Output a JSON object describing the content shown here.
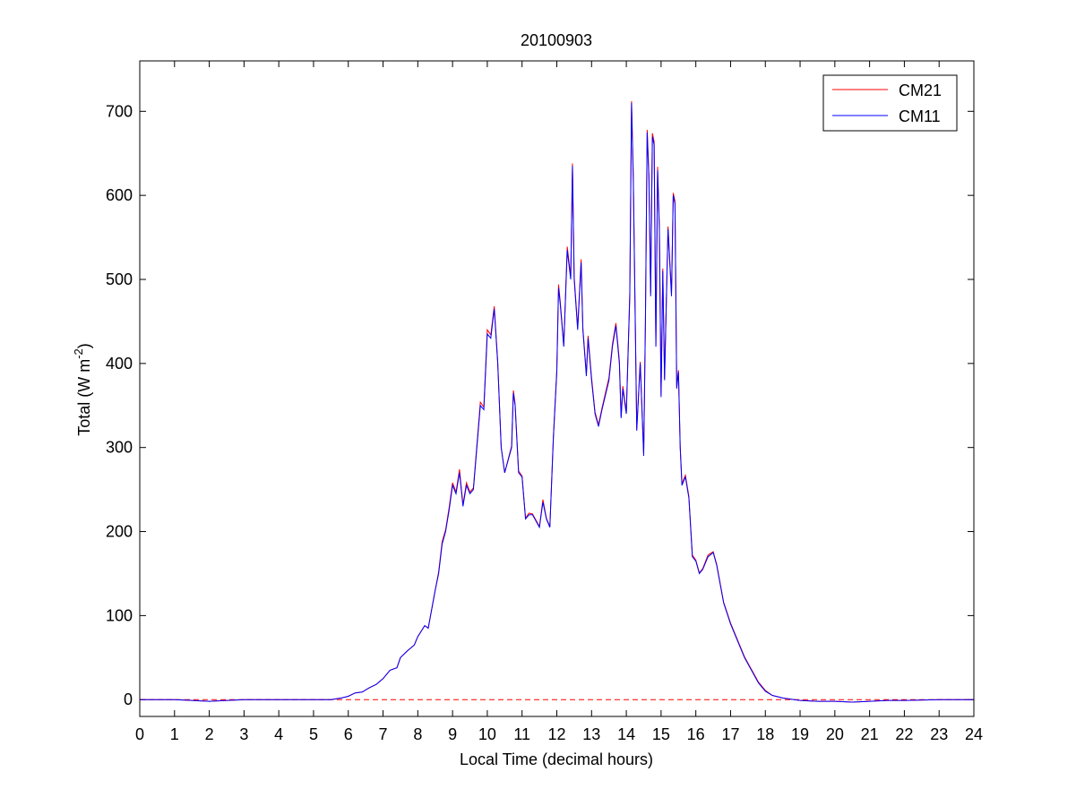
{
  "chart_data": {
    "type": "line",
    "title": "20100903",
    "xlabel": "Local Time (decimal hours)",
    "ylabel": {
      "text": "Total (W m",
      "superscript": "-2",
      "suffix": ")"
    },
    "xlim": [
      0,
      24
    ],
    "xticks": [
      0,
      1,
      2,
      3,
      4,
      5,
      6,
      7,
      8,
      9,
      10,
      11,
      12,
      13,
      14,
      15,
      16,
      17,
      18,
      19,
      20,
      21,
      22,
      23,
      24
    ],
    "ylim": [
      -20,
      760
    ],
    "yticks": [
      0,
      100,
      200,
      300,
      400,
      500,
      600,
      700
    ],
    "grid": false,
    "legend": "upper right",
    "zero_line": {
      "value": 0,
      "color": "#ff0000",
      "style": "dashed"
    },
    "x": [
      0,
      1,
      1.5,
      2,
      2.5,
      3,
      4,
      5,
      5.5,
      5.8,
      6,
      6.2,
      6.4,
      6.6,
      6.8,
      7,
      7.2,
      7.4,
      7.5,
      7.7,
      7.9,
      8,
      8.2,
      8.3,
      8.5,
      8.6,
      8.7,
      8.8,
      8.9,
      9,
      9.1,
      9.2,
      9.3,
      9.4,
      9.5,
      9.6,
      9.7,
      9.8,
      9.9,
      10,
      10.1,
      10.2,
      10.3,
      10.4,
      10.5,
      10.6,
      10.7,
      10.75,
      10.8,
      10.9,
      11,
      11.1,
      11.2,
      11.3,
      11.5,
      11.6,
      11.7,
      11.8,
      11.9,
      12,
      12.05,
      12.1,
      12.2,
      12.3,
      12.4,
      12.45,
      12.5,
      12.6,
      12.7,
      12.75,
      12.85,
      12.9,
      13,
      13.1,
      13.2,
      13.3,
      13.5,
      13.6,
      13.7,
      13.8,
      13.85,
      13.9,
      14,
      14.1,
      14.15,
      14.2,
      14.3,
      14.4,
      14.5,
      14.55,
      14.6,
      14.65,
      14.7,
      14.75,
      14.8,
      14.85,
      14.9,
      14.95,
      15,
      15.05,
      15.1,
      15.2,
      15.3,
      15.35,
      15.4,
      15.45,
      15.5,
      15.55,
      15.6,
      15.7,
      15.8,
      15.9,
      16,
      16.1,
      16.2,
      16.35,
      16.5,
      16.6,
      16.8,
      17,
      17.2,
      17.4,
      17.6,
      17.8,
      18,
      18.2,
      18.5,
      19,
      19.5,
      20,
      20.5,
      21,
      21.5,
      22,
      23,
      24
    ],
    "series": [
      {
        "name": "CM21",
        "color": "#ff0000",
        "values": [
          0,
          0,
          -1,
          -2,
          -1,
          0,
          0,
          0,
          0,
          2,
          4,
          8,
          9,
          14,
          18,
          25,
          35,
          38,
          50,
          58,
          65,
          75,
          88,
          85,
          130,
          152,
          188,
          202,
          228,
          258,
          247,
          274,
          232,
          258,
          247,
          252,
          303,
          354,
          348,
          440,
          434,
          468,
          402,
          300,
          270,
          286,
          302,
          368,
          352,
          272,
          266,
          216,
          222,
          221,
          206,
          238,
          216,
          206,
          312,
          393,
          494,
          473,
          422,
          539,
          503,
          638,
          503,
          443,
          524,
          442,
          388,
          433,
          383,
          342,
          327,
          347,
          383,
          423,
          448,
          403,
          337,
          373,
          342,
          484,
          712,
          625,
          322,
          402,
          292,
          454,
          678,
          624,
          484,
          674,
          664,
          422,
          634,
          563,
          362,
          513,
          382,
          563,
          483,
          603,
          593,
          372,
          392,
          302,
          257,
          267,
          242,
          172,
          166,
          151,
          156,
          172,
          176,
          161,
          116,
          91,
          71,
          51,
          36,
          21,
          11,
          5,
          2,
          -1,
          -2,
          -2,
          -3,
          -2,
          -1,
          -1,
          0,
          0
        ]
      },
      {
        "name": "CM11",
        "color": "#0000ff",
        "values": [
          0,
          0,
          -1,
          -2,
          -1,
          0,
          0,
          0,
          0,
          2,
          4,
          8,
          9,
          14,
          18,
          25,
          35,
          38,
          50,
          58,
          65,
          75,
          88,
          85,
          130,
          150,
          185,
          200,
          225,
          255,
          245,
          270,
          230,
          255,
          245,
          250,
          300,
          350,
          345,
          435,
          430,
          465,
          400,
          300,
          270,
          285,
          300,
          365,
          350,
          270,
          265,
          215,
          220,
          220,
          205,
          235,
          215,
          205,
          310,
          390,
          490,
          470,
          420,
          535,
          500,
          635,
          500,
          440,
          520,
          440,
          385,
          430,
          380,
          340,
          325,
          345,
          380,
          420,
          445,
          400,
          335,
          370,
          340,
          480,
          710,
          620,
          320,
          400,
          290,
          450,
          675,
          620,
          480,
          670,
          660,
          420,
          630,
          560,
          360,
          510,
          380,
          560,
          480,
          600,
          590,
          370,
          390,
          300,
          255,
          265,
          240,
          170,
          165,
          150,
          155,
          170,
          175,
          160,
          115,
          90,
          70,
          50,
          35,
          20,
          10,
          5,
          2,
          -1,
          -2,
          -2,
          -3,
          -2,
          -1,
          -1,
          0,
          0
        ]
      }
    ]
  }
}
